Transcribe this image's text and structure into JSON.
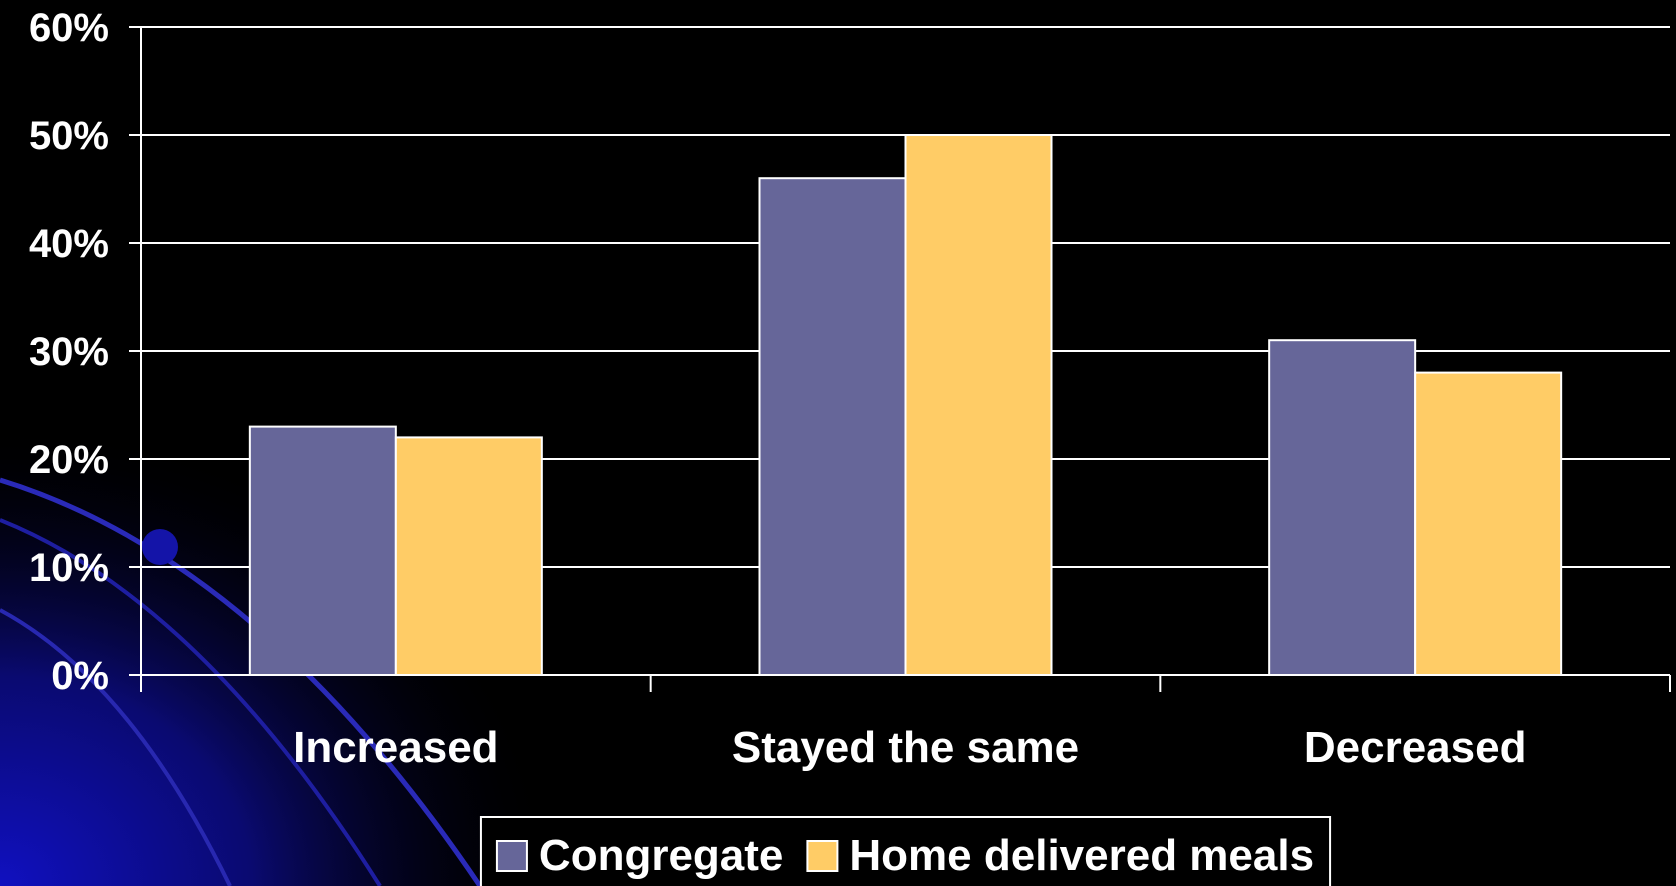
{
  "chart_data": {
    "type": "bar",
    "categories": [
      "Increased",
      "Stayed the same",
      "Decreased"
    ],
    "series": [
      {
        "name": "Congregate",
        "values": [
          23,
          46,
          31
        ],
        "color": "#666699"
      },
      {
        "name": "Home delivered meals",
        "values": [
          22,
          50,
          28
        ],
        "color": "#FFCC66"
      }
    ],
    "ylim": [
      0,
      60
    ],
    "yticks": [
      0,
      10,
      20,
      30,
      40,
      50,
      60
    ],
    "ytick_labels": [
      "0%",
      "10%",
      "20%",
      "30%",
      "40%",
      "50%",
      "60%"
    ],
    "title": "",
    "xlabel": "",
    "ylabel": "",
    "grid": true,
    "legend_position": "bottom-center",
    "colors": {
      "background": "#000000",
      "grid": "#ffffff",
      "text": "#ffffff",
      "decor": "#1a1aa6"
    }
  }
}
